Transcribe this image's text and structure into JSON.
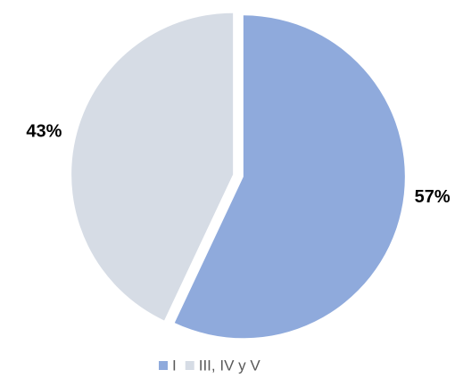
{
  "chart_data": {
    "type": "pie",
    "categories": [
      "I",
      "III, IV y V"
    ],
    "values": [
      57,
      43
    ],
    "value_labels": [
      "57%",
      "43%"
    ],
    "colors": [
      "#8faadc",
      "#d6dce5"
    ],
    "legend": "bottom"
  }
}
